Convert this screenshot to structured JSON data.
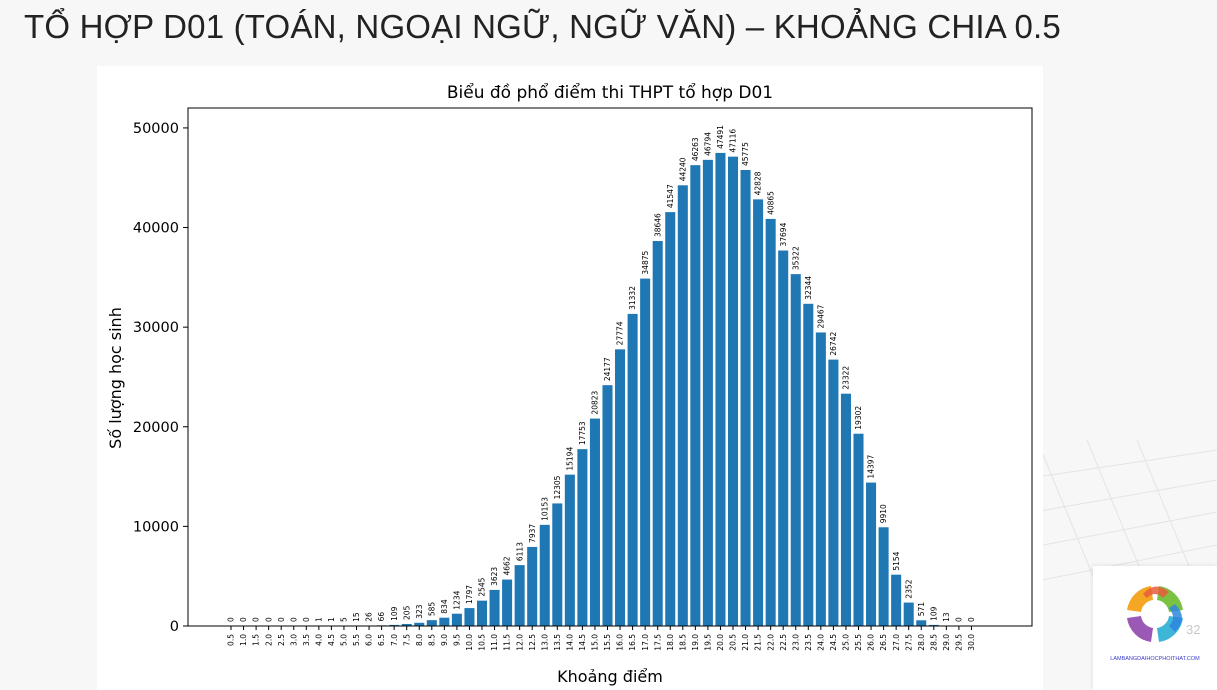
{
  "slide": {
    "title": "TỔ HỢP D01 (TOÁN, NGOẠI NGỮ, NGỮ VĂN) – KHOẢNG CHIA 0.5",
    "page_number": "32"
  },
  "logo": {
    "caption": "LAMBANGDAIHOCPHOITHAT.COM"
  },
  "chart_data": {
    "type": "bar",
    "title": "Biểu đồ phổ điểm thi THPT tổ hợp D01",
    "xlabel": "Khoảng điểm",
    "ylabel": "Số lượng học sinh",
    "categories": [
      "0.5",
      "1.0",
      "1.5",
      "2.0",
      "2.5",
      "3.0",
      "3.5",
      "4.0",
      "4.5",
      "5.0",
      "5.5",
      "6.0",
      "6.5",
      "7.0",
      "7.5",
      "8.0",
      "8.5",
      "9.0",
      "9.5",
      "10.0",
      "10.5",
      "11.0",
      "11.5",
      "12.0",
      "12.5",
      "13.0",
      "13.5",
      "14.0",
      "14.5",
      "15.0",
      "15.5",
      "16.0",
      "16.5",
      "17.0",
      "17.5",
      "18.0",
      "18.5",
      "19.0",
      "19.5",
      "20.0",
      "20.5",
      "21.0",
      "21.5",
      "22.0",
      "22.5",
      "23.0",
      "23.5",
      "24.0",
      "24.5",
      "25.0",
      "25.5",
      "26.0",
      "26.5",
      "27.0",
      "27.5",
      "28.0",
      "28.5",
      "29.0",
      "29.5",
      "30.0"
    ],
    "values": [
      0,
      0,
      0,
      0,
      0,
      0,
      0,
      1,
      1,
      5,
      15,
      26,
      66,
      109,
      205,
      323,
      585,
      834,
      1234,
      1797,
      2545,
      3623,
      4662,
      6113,
      7937,
      10153,
      12305,
      15194,
      17753,
      20823,
      24177,
      27774,
      31332,
      34875,
      38646,
      41547,
      44240,
      46263,
      46794,
      47491,
      47116,
      45775,
      42828,
      40865,
      37694,
      35322,
      32344,
      29467,
      26742,
      23322,
      19302,
      14397,
      9910,
      5154,
      2352,
      571,
      109,
      13,
      0,
      0
    ],
    "yticks": [
      "0",
      "10000",
      "20000",
      "30000",
      "40000",
      "50000"
    ],
    "ylim": [
      0,
      52000
    ],
    "bar_color": "#1f77b4",
    "grid": false,
    "data_labels": true
  }
}
